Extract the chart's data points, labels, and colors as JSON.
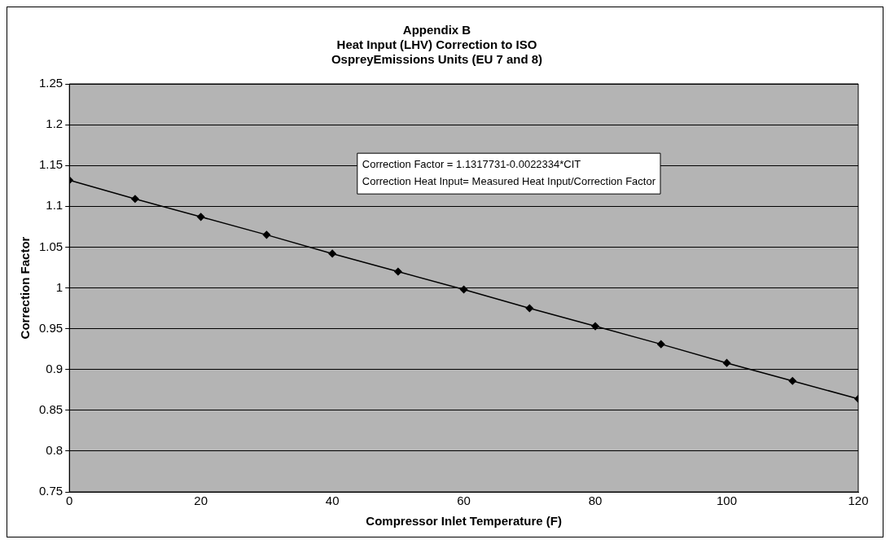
{
  "chart_data": {
    "type": "line",
    "title": [
      "Appendix B",
      "Heat Input (LHV) Correction to ISO",
      "OspreyEmissions Units (EU 7 and 8)"
    ],
    "xlabel": "Compressor Inlet Temperature (F)",
    "ylabel": "Correction Factor",
    "x": [
      0,
      10,
      20,
      30,
      40,
      50,
      60,
      70,
      80,
      90,
      100,
      110,
      120
    ],
    "series": [
      {
        "color": "#000000",
        "values": [
          1.132,
          1.109,
          1.087,
          1.065,
          1.042,
          1.02,
          0.998,
          0.975,
          0.953,
          0.931,
          0.908,
          0.886,
          0.864
        ]
      }
    ],
    "xlim": [
      0,
      120
    ],
    "xticks": [
      0,
      20,
      40,
      60,
      80,
      100,
      120
    ],
    "ylim": [
      0.75,
      1.25
    ],
    "yticks": [
      0.75,
      0.8,
      0.85,
      0.9,
      0.95,
      1,
      1.05,
      1.1,
      1.15,
      1.2,
      1.25
    ],
    "annotations": [
      "Correction Factor = 1.1317731-0.0022334*CIT",
      "Correction Heat Input= Measured Heat Input/Correction Factor"
    ],
    "grid": "y",
    "legend": false,
    "marker": "diamond",
    "line_style": "solid"
  }
}
